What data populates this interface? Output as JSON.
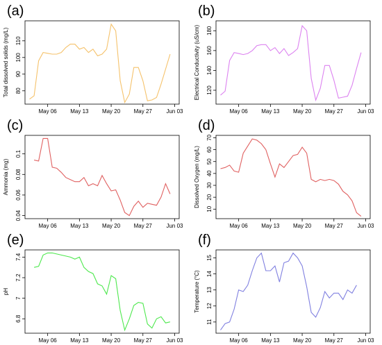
{
  "chart_data": [
    {
      "label": "(a)",
      "type": "line",
      "ylabel": "Total dissolved solids  (mg/L)",
      "color": "#f5c26b",
      "x": [
        "May 02",
        "May 03",
        "May 04",
        "May 05",
        "May 06",
        "May 07",
        "May 08",
        "May 09",
        "May 10",
        "May 11",
        "May 12",
        "May 13",
        "May 14",
        "May 15",
        "May 16",
        "May 17",
        "May 18",
        "May 19",
        "May 20",
        "May 21",
        "May 22",
        "May 23",
        "May 24",
        "May 25",
        "May 26",
        "May 27",
        "May 28",
        "May 29",
        "May 30",
        "May 31",
        "Jun 01",
        "Jun 02"
      ],
      "values": [
        75,
        77,
        98,
        103,
        102.5,
        102,
        102,
        103,
        106,
        108,
        108,
        105,
        106,
        103,
        105,
        101,
        102,
        105,
        120,
        116,
        86,
        73,
        78,
        94,
        94,
        86,
        74,
        74.5,
        76,
        84,
        93,
        102
      ],
      "xlim": [
        "May 01",
        "Jun 04"
      ],
      "xticks": [
        "May 06",
        "May 13",
        "May 20",
        "May 27",
        "Jun 03"
      ],
      "ylim": [
        72,
        122
      ],
      "yticks": [
        80,
        90,
        100,
        110
      ]
    },
    {
      "label": "(b)",
      "type": "line",
      "ylabel": "Electrical Conductivity (uS/cm)",
      "color": "#dc82f0",
      "x": [
        "May 02",
        "May 03",
        "May 04",
        "May 05",
        "May 06",
        "May 07",
        "May 08",
        "May 09",
        "May 10",
        "May 11",
        "May 12",
        "May 13",
        "May 14",
        "May 15",
        "May 16",
        "May 17",
        "May 18",
        "May 19",
        "May 20",
        "May 21",
        "May 22",
        "May 23",
        "May 24",
        "May 25",
        "May 26",
        "May 27",
        "May 28",
        "May 29",
        "May 30",
        "May 31",
        "Jun 01",
        "Jun 02"
      ],
      "values": [
        115,
        119,
        150,
        158,
        157,
        156,
        157,
        160,
        165,
        166,
        166,
        160,
        163,
        157,
        162,
        155,
        158,
        162,
        185,
        180,
        132,
        110,
        122,
        145,
        145,
        130,
        112,
        113,
        114,
        125,
        142,
        158
      ],
      "xlim": [
        "May 01",
        "Jun 04"
      ],
      "xticks": [
        "May 06",
        "May 13",
        "May 20",
        "May 27",
        "Jun 03"
      ],
      "ylim": [
        106,
        190
      ],
      "yticks": [
        120,
        140,
        160,
        180
      ]
    },
    {
      "label": "(c)",
      "type": "line",
      "ylabel": "Ammonia (mg)",
      "color": "#e06060",
      "x": [
        "May 03",
        "May 04",
        "May 05",
        "May 06",
        "May 07",
        "May 08",
        "May 09",
        "May 10",
        "May 11",
        "May 12",
        "May 13",
        "May 14",
        "May 15",
        "May 16",
        "May 17",
        "May 18",
        "May 19",
        "May 20",
        "May 21",
        "May 22",
        "May 23",
        "May 24",
        "May 25",
        "May 26",
        "May 27",
        "May 28",
        "May 29",
        "May 30",
        "May 31",
        "Jun 01",
        "Jun 02"
      ],
      "values": [
        0.094,
        0.093,
        0.115,
        0.115,
        0.087,
        0.086,
        0.082,
        0.077,
        0.075,
        0.073,
        0.073,
        0.077,
        0.069,
        0.071,
        0.069,
        0.079,
        0.071,
        0.064,
        0.065,
        0.055,
        0.043,
        0.04,
        0.049,
        0.054,
        0.048,
        0.052,
        0.051,
        0.05,
        0.058,
        0.071,
        0.061
      ],
      "xlim": [
        "May 01",
        "Jun 04"
      ],
      "xticks": [
        "May 06",
        "May 13",
        "May 20",
        "May 27",
        "Jun 03"
      ],
      "ylim": [
        0.037,
        0.118
      ],
      "yticks": [
        0.04,
        0.06,
        0.08,
        0.1
      ]
    },
    {
      "label": "(d)",
      "type": "line",
      "ylabel": "Dissolved Oxygen (mg/L)",
      "color": "#e06060",
      "x": [
        "May 02",
        "May 03",
        "May 04",
        "May 05",
        "May 06",
        "May 07",
        "May 08",
        "May 09",
        "May 10",
        "May 11",
        "May 12",
        "May 13",
        "May 14",
        "May 15",
        "May 16",
        "May 17",
        "May 18",
        "May 19",
        "May 20",
        "May 21",
        "May 22",
        "May 23",
        "May 24",
        "May 25",
        "May 26",
        "May 27",
        "May 28",
        "May 29",
        "May 30",
        "May 31",
        "Jun 01",
        "Jun 02"
      ],
      "values": [
        44,
        45,
        47,
        42,
        41,
        57,
        63,
        69,
        68,
        65,
        60,
        48,
        37,
        48,
        45,
        50,
        55,
        56,
        62,
        57,
        35,
        33,
        35,
        34,
        35,
        34,
        31,
        25,
        22,
        17,
        7,
        4
      ],
      "xlim": [
        "May 01",
        "Jun 04"
      ],
      "xticks": [
        "May 06",
        "May 13",
        "May 20",
        "May 27",
        "Jun 03"
      ],
      "ylim": [
        2,
        72
      ],
      "yticks": [
        10,
        20,
        30,
        40,
        50,
        60,
        70
      ]
    },
    {
      "label": "(e)",
      "type": "line",
      "ylabel": "pH",
      "color": "#4de84d",
      "x": [
        "May 03",
        "May 04",
        "May 05",
        "May 06",
        "May 07",
        "May 08",
        "May 09",
        "May 10",
        "May 11",
        "May 12",
        "May 13",
        "May 14",
        "May 15",
        "May 16",
        "May 17",
        "May 18",
        "May 19",
        "May 20",
        "May 21",
        "May 22",
        "May 23",
        "May 24",
        "May 25",
        "May 26",
        "May 27",
        "May 28",
        "May 29",
        "May 30",
        "May 31",
        "Jun 01",
        "Jun 02"
      ],
      "values": [
        7.3,
        7.31,
        7.42,
        7.44,
        7.44,
        7.43,
        7.42,
        7.41,
        7.4,
        7.38,
        7.4,
        7.3,
        7.26,
        7.24,
        7.14,
        7.12,
        7.04,
        7.22,
        7.19,
        6.88,
        6.69,
        6.8,
        6.93,
        6.96,
        6.95,
        6.75,
        6.71,
        6.8,
        6.82,
        6.76,
        6.77
      ],
      "xlim": [
        "May 01",
        "Jun 04"
      ],
      "xticks": [
        "May 06",
        "May 13",
        "May 20",
        "May 27",
        "Jun 03"
      ],
      "ylim": [
        6.66,
        7.47
      ],
      "yticks": [
        6.8,
        7.0,
        7.2,
        7.4
      ]
    },
    {
      "label": "(f)",
      "type": "line",
      "ylabel": "Temperature (°C)",
      "color": "#8080e0",
      "x": [
        "May 02",
        "May 03",
        "May 04",
        "May 05",
        "May 06",
        "May 07",
        "May 08",
        "May 09",
        "May 10",
        "May 11",
        "May 12",
        "May 13",
        "May 14",
        "May 15",
        "May 16",
        "May 17",
        "May 18",
        "May 19",
        "May 20",
        "May 21",
        "May 22",
        "May 23",
        "May 24",
        "May 25",
        "May 26",
        "May 27",
        "May 28",
        "May 29",
        "May 30",
        "May 31",
        "Jun 01"
      ],
      "values": [
        10.5,
        10.9,
        11.0,
        11.8,
        13.0,
        12.9,
        13.3,
        14.2,
        15.0,
        15.3,
        14.2,
        14.2,
        14.5,
        13.5,
        14.7,
        14.8,
        15.3,
        15.0,
        14.5,
        13.2,
        11.6,
        11.3,
        11.9,
        12.9,
        12.5,
        12.8,
        12.8,
        12.4,
        13.0,
        12.8,
        13.3
      ],
      "xlim": [
        "May 01",
        "Jun 04"
      ],
      "xticks": [
        "May 06",
        "May 13",
        "May 20",
        "May 27",
        "Jun 03"
      ],
      "ylim": [
        10.3,
        15.5
      ],
      "yticks": [
        11,
        12,
        13,
        14,
        15
      ]
    }
  ]
}
